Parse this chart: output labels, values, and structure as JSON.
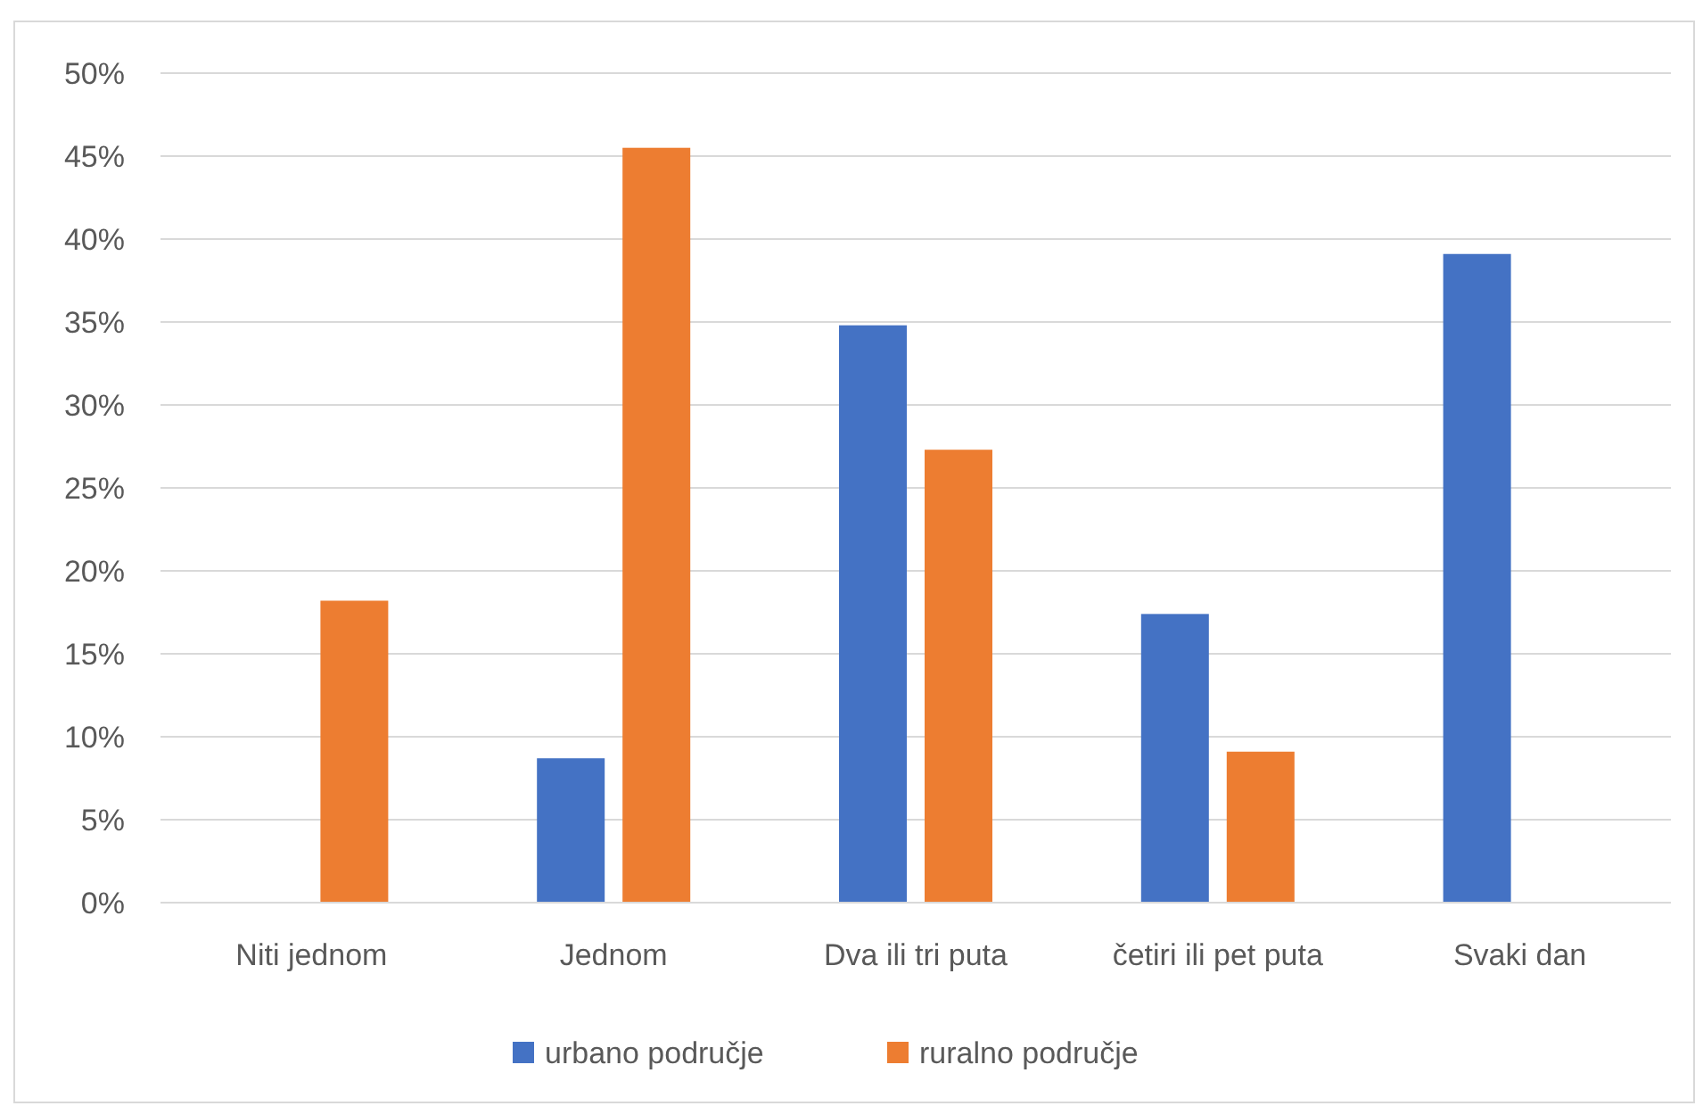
{
  "chart_data": {
    "type": "bar",
    "categories": [
      "Niti jednom",
      "Jednom",
      "Dva ili tri puta",
      "četiri ili pet puta",
      "Svaki dan"
    ],
    "series": [
      {
        "name": "urbano područje",
        "color": "#4472c4",
        "values": [
          0,
          8.7,
          34.8,
          17.4,
          39.1
        ]
      },
      {
        "name": "ruralno područje",
        "color": "#ed7d31",
        "values": [
          18.2,
          45.5,
          27.3,
          9.1,
          0
        ]
      }
    ],
    "ylim": [
      0,
      50
    ],
    "yticks": [
      {
        "value": 0,
        "label": "0%"
      },
      {
        "value": 5,
        "label": "5%"
      },
      {
        "value": 10,
        "label": "10%"
      },
      {
        "value": 15,
        "label": "15%"
      },
      {
        "value": 20,
        "label": "20%"
      },
      {
        "value": 25,
        "label": "25%"
      },
      {
        "value": 30,
        "label": "30%"
      },
      {
        "value": 35,
        "label": "35%"
      },
      {
        "value": 40,
        "label": "40%"
      },
      {
        "value": 45,
        "label": "45%"
      },
      {
        "value": 50,
        "label": "50%"
      }
    ],
    "grid": "y",
    "legend": "bottom"
  }
}
